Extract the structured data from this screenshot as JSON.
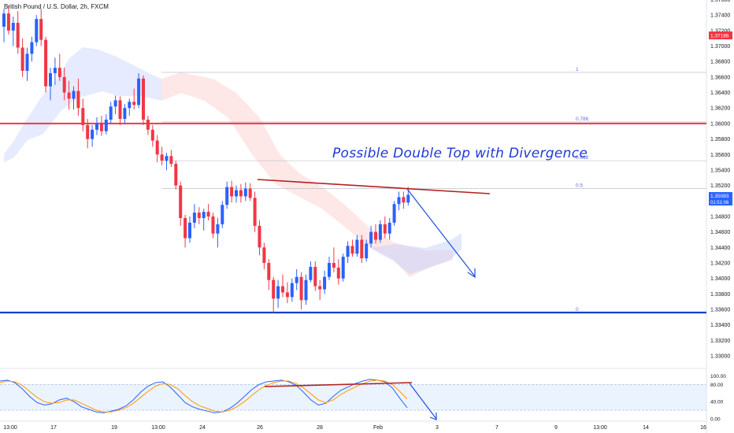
{
  "header": {
    "title": "British Pound / U.S. Dollar, 2h, FXCM"
  },
  "annotation": "Possible Double Top with Divergence",
  "price_badges": {
    "last": {
      "value": "1.35083",
      "countdown": "01:51:06",
      "color": "#2962ff"
    },
    "alert": {
      "value": "1.37186",
      "color": "#f23645"
    }
  },
  "colors": {
    "up": "#2962ff",
    "down": "#f23645",
    "resistance": "#f23645",
    "support": "#1040c8",
    "trendline": "#b22222",
    "arrow": "#1d4fd8",
    "stoch_k": "#2962ff",
    "stoch_d": "#ff9800"
  },
  "chart_data": [
    {
      "type": "candlestick",
      "title": "British Pound / U.S. Dollar, 2h, FXCM",
      "ylim": [
        1.3316,
        1.3766
      ],
      "y_ticks": [
        "1.37600",
        "1.37400",
        "1.37200",
        "1.37000",
        "1.36800",
        "1.36600",
        "1.36400",
        "1.36200",
        "1.36000",
        "1.35800",
        "1.35600",
        "1.35400",
        "1.35200",
        "1.35000",
        "1.34800",
        "1.34600",
        "1.34400",
        "1.34200",
        "1.34000",
        "1.33800",
        "1.33600",
        "1.33400",
        "1.33200",
        "1.33000"
      ],
      "x_ticks": [
        "13:00",
        "17",
        "19",
        "13:00",
        "24",
        "26",
        "28",
        "Feb",
        "3",
        "7",
        "9",
        "13:00",
        "14",
        "16"
      ],
      "horizontal_lines": [
        {
          "name": "resistance",
          "price": 1.36
        },
        {
          "name": "support",
          "price": 1.3356
        }
      ],
      "fibonacci": [
        {
          "label": "1",
          "price": 1.3666
        },
        {
          "label": "0.786",
          "price": 1.3602
        },
        {
          "label": "0.618",
          "price": 1.3552
        },
        {
          "label": "0.5",
          "price": 1.3516
        },
        {
          "label": "0",
          "price": 1.3356
        }
      ],
      "ohlc": [
        [
          1.3725,
          1.3748,
          1.3705,
          1.3742
        ],
        [
          1.3742,
          1.3752,
          1.3715,
          1.372
        ],
        [
          1.372,
          1.3738,
          1.37,
          1.373
        ],
        [
          1.373,
          1.3745,
          1.369,
          1.3698
        ],
        [
          1.3698,
          1.371,
          1.366,
          1.3668
        ],
        [
          1.3668,
          1.3698,
          1.3655,
          1.369
        ],
        [
          1.369,
          1.3712,
          1.368,
          1.3705
        ],
        [
          1.3705,
          1.374,
          1.37,
          1.3735
        ],
        [
          1.3735,
          1.3748,
          1.37,
          1.3708
        ],
        [
          1.3708,
          1.3712,
          1.364,
          1.3648
        ],
        [
          1.3648,
          1.3672,
          1.363,
          1.3665
        ],
        [
          1.3665,
          1.3685,
          1.365,
          1.3672
        ],
        [
          1.3672,
          1.369,
          1.3655,
          1.366
        ],
        [
          1.366,
          1.3672,
          1.363,
          1.364
        ],
        [
          1.364,
          1.3655,
          1.3618,
          1.3632
        ],
        [
          1.3632,
          1.3648,
          1.3618,
          1.3642
        ],
        [
          1.3642,
          1.3658,
          1.361,
          1.362
        ],
        [
          1.362,
          1.3632,
          1.359,
          1.3598
        ],
        [
          1.3598,
          1.3606,
          1.3568,
          1.358
        ],
        [
          1.358,
          1.3598,
          1.357,
          1.3592
        ],
        [
          1.3592,
          1.3608,
          1.3585,
          1.36
        ],
        [
          1.36,
          1.361,
          1.3584,
          1.359
        ],
        [
          1.359,
          1.3612,
          1.3586,
          1.3605
        ],
        [
          1.3605,
          1.3628,
          1.36,
          1.3622
        ],
        [
          1.3622,
          1.3636,
          1.3612,
          1.363
        ],
        [
          1.363,
          1.3635,
          1.3598,
          1.3606
        ],
        [
          1.3606,
          1.3625,
          1.36,
          1.362
        ],
        [
          1.362,
          1.3632,
          1.361,
          1.3628
        ],
        [
          1.3628,
          1.3645,
          1.3618,
          1.3624
        ],
        [
          1.3624,
          1.3665,
          1.362,
          1.3658
        ],
        [
          1.3658,
          1.3662,
          1.3598,
          1.3605
        ],
        [
          1.3605,
          1.361,
          1.3585,
          1.3592
        ],
        [
          1.3592,
          1.3598,
          1.357,
          1.3578
        ],
        [
          1.3578,
          1.3585,
          1.355,
          1.356
        ],
        [
          1.356,
          1.357,
          1.3546,
          1.3552
        ],
        [
          1.3552,
          1.3562,
          1.354,
          1.3558
        ],
        [
          1.3558,
          1.3566,
          1.3544,
          1.3548
        ],
        [
          1.3548,
          1.3552,
          1.3515,
          1.352
        ],
        [
          1.352,
          1.3525,
          1.3468,
          1.3478
        ],
        [
          1.3478,
          1.3482,
          1.344,
          1.3452
        ],
        [
          1.3452,
          1.348,
          1.3446,
          1.3472
        ],
        [
          1.3472,
          1.3496,
          1.3465,
          1.3485
        ],
        [
          1.3485,
          1.3492,
          1.347,
          1.3478
        ],
        [
          1.3478,
          1.349,
          1.3462,
          1.3486
        ],
        [
          1.3486,
          1.3496,
          1.3475,
          1.348
        ],
        [
          1.348,
          1.3485,
          1.3452,
          1.3458
        ],
        [
          1.3458,
          1.3478,
          1.344,
          1.347
        ],
        [
          1.347,
          1.35,
          1.3465,
          1.3495
        ],
        [
          1.3495,
          1.3525,
          1.349,
          1.3518
        ],
        [
          1.3518,
          1.3526,
          1.3498,
          1.3506
        ],
        [
          1.3506,
          1.352,
          1.3498,
          1.3514
        ],
        [
          1.3514,
          1.3522,
          1.3498,
          1.3506
        ],
        [
          1.3506,
          1.3524,
          1.35,
          1.3516
        ],
        [
          1.3516,
          1.3523,
          1.35,
          1.3504
        ],
        [
          1.3504,
          1.3512,
          1.346,
          1.3468
        ],
        [
          1.3468,
          1.3475,
          1.343,
          1.344
        ],
        [
          1.344,
          1.3446,
          1.3412,
          1.342
        ],
        [
          1.342,
          1.3425,
          1.3385,
          1.3398
        ],
        [
          1.3398,
          1.3402,
          1.3356,
          1.3374
        ],
        [
          1.3374,
          1.3398,
          1.3362,
          1.339
        ],
        [
          1.339,
          1.3405,
          1.3376,
          1.3382
        ],
        [
          1.3382,
          1.3395,
          1.3368,
          1.3376
        ],
        [
          1.3376,
          1.34,
          1.337,
          1.3394
        ],
        [
          1.3394,
          1.3412,
          1.3385,
          1.3402
        ],
        [
          1.3402,
          1.3408,
          1.336,
          1.3372
        ],
        [
          1.3372,
          1.3405,
          1.3366,
          1.3398
        ],
        [
          1.3398,
          1.3422,
          1.3395,
          1.3415
        ],
        [
          1.3415,
          1.3422,
          1.3384,
          1.339
        ],
        [
          1.339,
          1.3398,
          1.3372,
          1.3386
        ],
        [
          1.3386,
          1.341,
          1.338,
          1.3402
        ],
        [
          1.3402,
          1.3428,
          1.3398,
          1.342
        ],
        [
          1.342,
          1.344,
          1.3408,
          1.3414
        ],
        [
          1.3414,
          1.3425,
          1.3392,
          1.34
        ],
        [
          1.34,
          1.3432,
          1.3396,
          1.3428
        ],
        [
          1.3428,
          1.3448,
          1.342,
          1.3442
        ],
        [
          1.3442,
          1.345,
          1.3428,
          1.3432
        ],
        [
          1.3432,
          1.3456,
          1.3428,
          1.345
        ],
        [
          1.345,
          1.3456,
          1.342,
          1.3426
        ],
        [
          1.3426,
          1.345,
          1.3422,
          1.3445
        ],
        [
          1.3445,
          1.3468,
          1.344,
          1.346
        ],
        [
          1.346,
          1.347,
          1.3445,
          1.345
        ],
        [
          1.345,
          1.3475,
          1.3446,
          1.347
        ],
        [
          1.347,
          1.348,
          1.3452,
          1.3458
        ],
        [
          1.3458,
          1.3478,
          1.345,
          1.3472
        ],
        [
          1.3472,
          1.35,
          1.3468,
          1.3496
        ],
        [
          1.3496,
          1.3512,
          1.3488,
          1.3505
        ],
        [
          1.3505,
          1.3512,
          1.349,
          1.3498
        ],
        [
          1.3498,
          1.3518,
          1.3494,
          1.3508
        ]
      ]
    },
    {
      "type": "line",
      "name": "stochastic",
      "ylim": [
        0,
        100
      ],
      "y_ticks": [
        "100.00",
        "80.00",
        "40.00",
        "0.00"
      ],
      "band": [
        20,
        80
      ],
      "series": [
        {
          "values": [
            88,
            90,
            84,
            70,
            52,
            38,
            32,
            35,
            44,
            48,
            40,
            28,
            22,
            16,
            14,
            18,
            22,
            30,
            44,
            62,
            76,
            84,
            86,
            74,
            56,
            38,
            28,
            22,
            18,
            14,
            16,
            24,
            36,
            52,
            68,
            80,
            86,
            88,
            90,
            86,
            78,
            62,
            44,
            32,
            36,
            52,
            66,
            74,
            82,
            88,
            92,
            90,
            86,
            72,
            48,
            26
          ]
        },
        {
          "values": [
            84,
            88,
            86,
            78,
            64,
            50,
            40,
            36,
            38,
            44,
            44,
            36,
            28,
            20,
            16,
            16,
            20,
            26,
            36,
            50,
            64,
            76,
            82,
            80,
            70,
            54,
            40,
            30,
            24,
            18,
            16,
            20,
            28,
            40,
            54,
            68,
            78,
            84,
            88,
            88,
            82,
            72,
            58,
            44,
            38,
            44,
            56,
            66,
            74,
            82,
            88,
            90,
            88,
            80,
            64,
            46
          ]
        }
      ]
    }
  ]
}
